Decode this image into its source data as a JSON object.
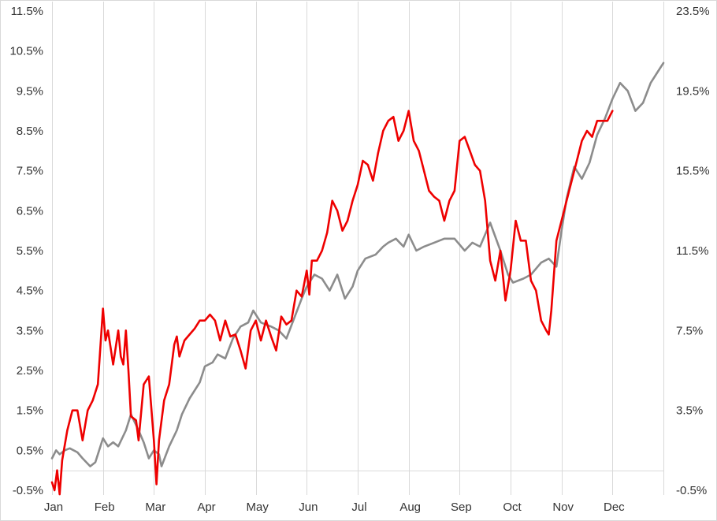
{
  "chart_data": {
    "type": "line",
    "title": "",
    "xlabel": "",
    "ylabel": "",
    "grid": "vertical",
    "legend": "none",
    "x_categories": [
      "Jan",
      "Feb",
      "Mar",
      "Apr",
      "May",
      "Jun",
      "Jul",
      "Aug",
      "Sep",
      "Oct",
      "Nov",
      "Dec"
    ],
    "left_axis": {
      "ylim": [
        -0.5,
        11.5
      ],
      "ticks": [
        "-0.5%",
        "0.5%",
        "1.5%",
        "2.5%",
        "3.5%",
        "4.5%",
        "5.5%",
        "6.5%",
        "7.5%",
        "8.5%",
        "9.5%",
        "10.5%",
        "11.5%"
      ]
    },
    "right_axis": {
      "ylim": [
        -0.5,
        23.5
      ],
      "ticks": [
        "-0.5%",
        "3.5%",
        "7.5%",
        "11.5%",
        "15.5%",
        "19.5%",
        "23.5%"
      ]
    },
    "series": [
      {
        "axis": "left",
        "color": "#8c8c8c",
        "x": [
          0.0,
          0.08,
          0.15,
          0.25,
          0.35,
          0.5,
          0.6,
          0.75,
          0.85,
          1.0,
          1.1,
          1.2,
          1.3,
          1.45,
          1.55,
          1.7,
          1.8,
          1.9,
          2.0,
          2.1,
          2.15,
          2.3,
          2.45,
          2.55,
          2.7,
          2.9,
          3.0,
          3.15,
          3.25,
          3.4,
          3.55,
          3.7,
          3.85,
          3.95,
          4.1,
          4.3,
          4.45,
          4.6,
          4.75,
          4.9,
          5.0,
          5.15,
          5.3,
          5.45,
          5.6,
          5.75,
          5.9,
          6.0,
          6.15,
          6.35,
          6.5,
          6.6,
          6.75,
          6.9,
          7.0,
          7.15,
          7.3,
          7.5,
          7.7,
          7.9,
          8.1,
          8.25,
          8.4,
          8.6,
          8.8,
          8.95,
          9.05,
          9.25,
          9.4,
          9.6,
          9.75,
          9.9,
          10.0,
          10.1,
          10.25,
          10.4,
          10.55,
          10.7,
          10.85,
          11.0,
          11.15,
          11.3,
          11.45,
          11.6,
          11.75,
          11.9,
          12.0
        ],
        "values": [
          0.3,
          0.5,
          0.4,
          0.5,
          0.55,
          0.45,
          0.3,
          0.1,
          0.2,
          0.8,
          0.6,
          0.7,
          0.6,
          1.0,
          1.4,
          1.0,
          0.7,
          0.3,
          0.5,
          0.4,
          0.1,
          0.6,
          1.0,
          1.4,
          1.8,
          2.2,
          2.6,
          2.7,
          2.9,
          2.8,
          3.3,
          3.6,
          3.7,
          4.0,
          3.7,
          3.6,
          3.5,
          3.3,
          3.8,
          4.3,
          4.6,
          4.9,
          4.8,
          4.5,
          4.9,
          4.3,
          4.6,
          5.0,
          5.3,
          5.4,
          5.6,
          5.7,
          5.8,
          5.6,
          5.9,
          5.5,
          5.6,
          5.7,
          5.8,
          5.8,
          5.5,
          5.7,
          5.6,
          6.2,
          5.5,
          4.9,
          4.7,
          4.8,
          4.9,
          5.2,
          5.3,
          5.1,
          6.0,
          6.8,
          7.6,
          7.3,
          7.7,
          8.4,
          8.8,
          9.3,
          9.7,
          9.5,
          9.0,
          9.2,
          9.7,
          10.0,
          10.2
        ]
      },
      {
        "axis": "right",
        "color": "#ee0000",
        "x": [
          0.0,
          0.05,
          0.1,
          0.15,
          0.2,
          0.3,
          0.4,
          0.5,
          0.6,
          0.7,
          0.8,
          0.9,
          1.0,
          1.05,
          1.1,
          1.2,
          1.3,
          1.35,
          1.4,
          1.45,
          1.5,
          1.55,
          1.65,
          1.7,
          1.8,
          1.9,
          2.0,
          2.05,
          2.1,
          2.2,
          2.3,
          2.4,
          2.45,
          2.5,
          2.6,
          2.7,
          2.8,
          2.9,
          3.0,
          3.1,
          3.2,
          3.3,
          3.4,
          3.5,
          3.6,
          3.7,
          3.8,
          3.9,
          4.0,
          4.1,
          4.2,
          4.3,
          4.4,
          4.5,
          4.6,
          4.7,
          4.8,
          4.9,
          5.0,
          5.05,
          5.1,
          5.2,
          5.3,
          5.4,
          5.5,
          5.6,
          5.7,
          5.8,
          5.9,
          6.0,
          6.1,
          6.2,
          6.3,
          6.4,
          6.5,
          6.6,
          6.7,
          6.8,
          6.9,
          7.0,
          7.1,
          7.2,
          7.3,
          7.4,
          7.5,
          7.6,
          7.7,
          7.8,
          7.9,
          8.0,
          8.1,
          8.2,
          8.3,
          8.4,
          8.5,
          8.6,
          8.7,
          8.8,
          8.9,
          9.0,
          9.1,
          9.2,
          9.3,
          9.4,
          9.5,
          9.6,
          9.7,
          9.75,
          9.8,
          9.9,
          10.0,
          10.05,
          10.1,
          10.2,
          10.3,
          10.4,
          10.5,
          10.6,
          10.7,
          10.8,
          10.9,
          11.0
        ],
        "values": [
          -0.1,
          -0.5,
          0.5,
          -0.7,
          1.0,
          2.5,
          3.5,
          3.5,
          2.0,
          3.5,
          4.0,
          4.8,
          8.6,
          7.0,
          7.5,
          5.8,
          7.5,
          6.2,
          5.8,
          7.5,
          5.5,
          3.2,
          3.0,
          2.0,
          4.8,
          5.2,
          2.0,
          -0.2,
          2.0,
          4.0,
          4.8,
          6.8,
          7.2,
          6.2,
          7.0,
          7.3,
          7.6,
          8.0,
          8.0,
          8.3,
          8.0,
          7.0,
          8.0,
          7.2,
          7.3,
          6.5,
          5.6,
          7.5,
          8.0,
          7.0,
          8.0,
          7.2,
          6.5,
          8.2,
          7.8,
          8.0,
          9.5,
          9.2,
          10.5,
          9.3,
          11.0,
          11.0,
          11.5,
          12.4,
          14.0,
          13.5,
          12.5,
          13.0,
          14.0,
          14.8,
          16.0,
          15.8,
          15.0,
          16.4,
          17.5,
          18.0,
          18.2,
          17.0,
          17.5,
          18.5,
          17.0,
          16.5,
          15.5,
          14.5,
          14.2,
          14.0,
          13.0,
          14.0,
          14.5,
          17.0,
          17.2,
          16.5,
          15.8,
          15.5,
          14.0,
          11.0,
          10.0,
          11.5,
          9.0,
          10.5,
          13.0,
          12.0,
          12.0,
          10.0,
          9.5,
          8.0,
          7.5,
          7.3,
          8.5,
          12.0,
          13.0,
          13.5,
          14.0,
          15.0,
          16.0,
          17.0,
          17.5,
          17.2,
          18.0,
          18.0,
          18.0,
          18.5
        ]
      }
    ]
  }
}
